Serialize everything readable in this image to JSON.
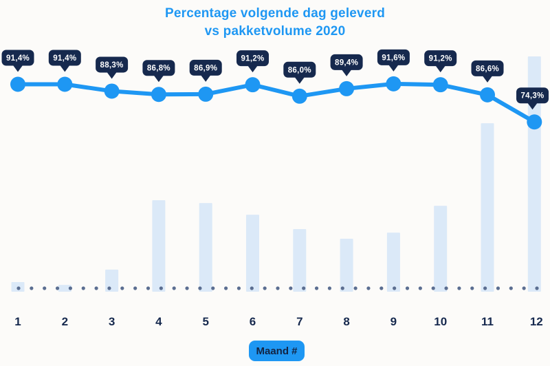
{
  "title": {
    "line1": "Percentage volgende dag geleverd",
    "line2": "vs pakketvolume 2020"
  },
  "xaxis": {
    "badge_label": "Maand #",
    "months": [
      "1",
      "2",
      "3",
      "4",
      "5",
      "6",
      "7",
      "8",
      "9",
      "10",
      "11",
      "12"
    ]
  },
  "chart_data": {
    "type": "line+bar combo",
    "title": "Percentage volgende dag geleverd vs pakketvolume 2020",
    "categories": [
      1,
      2,
      3,
      4,
      5,
      6,
      7,
      8,
      9,
      10,
      11,
      12
    ],
    "xlabel": "Maand #",
    "ylabel": "",
    "series": [
      {
        "name": "Percentage volgende dag geleverd",
        "type": "line",
        "unit": "%",
        "values": [
          91.4,
          91.4,
          88.3,
          86.8,
          86.9,
          91.2,
          86.0,
          89.4,
          91.6,
          91.2,
          86.6,
          74.3
        ],
        "labels": [
          "91,4%",
          "91,4%",
          "88,3%",
          "86,8%",
          "86,9%",
          "91,2%",
          "86,0%",
          "89,4%",
          "91,6%",
          "91,2%",
          "86,6%",
          "74,3%"
        ]
      },
      {
        "name": "Pakketvolume 2020",
        "type": "bar",
        "unit": "relative height, max month = 100",
        "values": [
          4.1,
          2.9,
          9.4,
          38.9,
          37.7,
          32.7,
          26.6,
          22.5,
          25.1,
          36.5,
          71.6,
          100
        ]
      }
    ],
    "layout": {
      "y_axis_visible": false,
      "gridlines": false,
      "legend": "none",
      "value_labels": "navy speech-bubble callouts above each line point",
      "baseline": "dotted horizontal line at x-axis"
    }
  },
  "colors": {
    "accent_blue": "#1e97f3",
    "navy": "#16294e",
    "bar_fill": "#dbe9f8",
    "dot_gray": "#5b6e91",
    "callout_text": "#ffffff",
    "background": "#fcfbf9",
    "badge_text": "#122444"
  }
}
